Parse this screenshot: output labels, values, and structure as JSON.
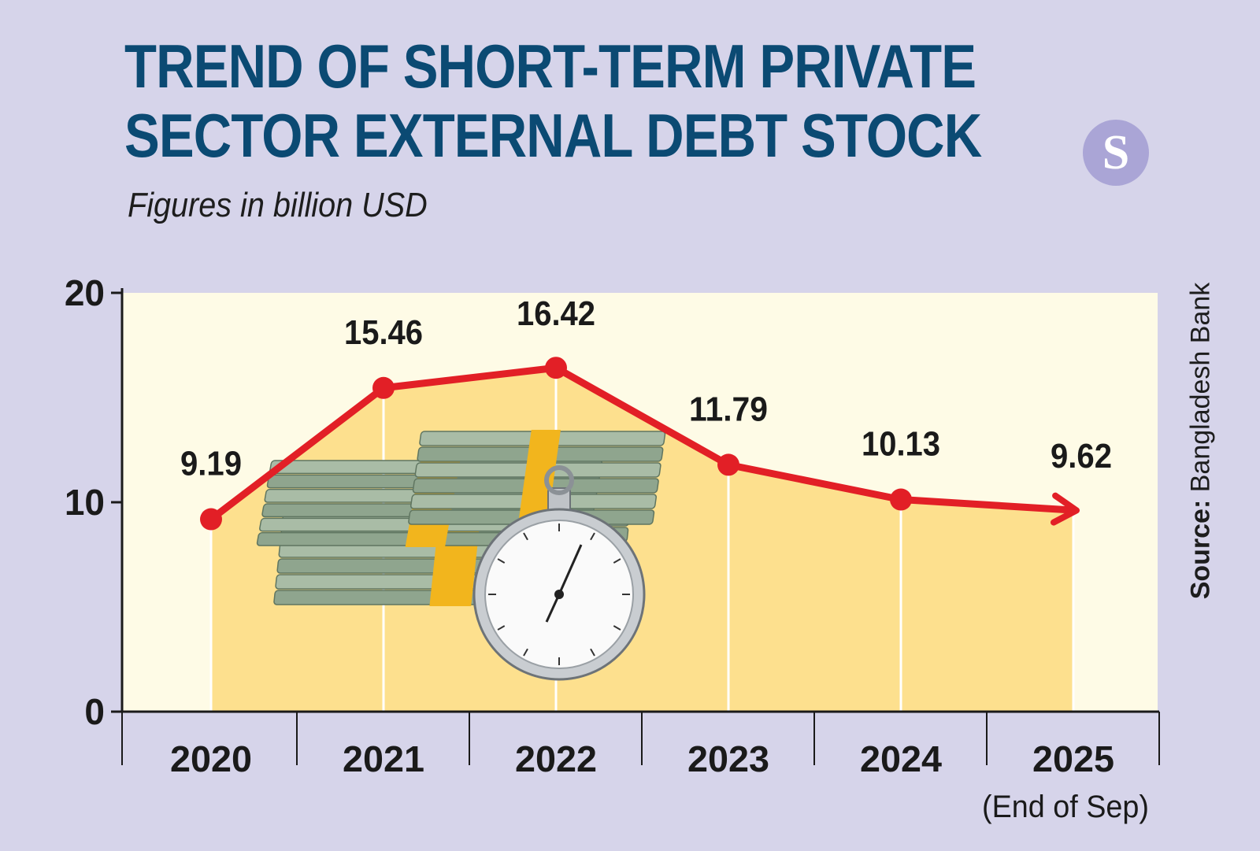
{
  "header": {
    "title_line1": "TREND OF SHORT-TERM PRIVATE",
    "title_line2": "SECTOR EXTERNAL DEBT STOCK",
    "subtitle": "Figures in billion USD",
    "logo_text": "S"
  },
  "source": {
    "label": "Source:",
    "name": "Bangladesh Bank"
  },
  "colors": {
    "background": "#d6d4ea",
    "plot_area": "#fefbe6",
    "area_fill": "#fde08e",
    "line": "#e21f26",
    "title": "#0b4a73",
    "logo": "#aaa5d6"
  },
  "chart_data": {
    "type": "line",
    "title": "TREND OF SHORT-TERM PRIVATE SECTOR EXTERNAL DEBT STOCK",
    "subtitle": "Figures in billion USD",
    "categories": [
      "2020",
      "2021",
      "2022",
      "2023",
      "2024",
      "2025"
    ],
    "category_notes": [
      "",
      "",
      "",
      "",
      "",
      "(End of Sep)"
    ],
    "values": [
      9.19,
      15.46,
      16.42,
      11.79,
      10.13,
      9.62
    ],
    "value_labels": [
      "9.19",
      "15.46",
      "16.42",
      "11.79",
      "10.13",
      "9.62"
    ],
    "ylim": [
      0,
      20
    ],
    "yticks": [
      0,
      10,
      20
    ],
    "xlabel": "",
    "ylabel": "",
    "grid": false,
    "area_fill": true,
    "last_point_arrow": true
  }
}
